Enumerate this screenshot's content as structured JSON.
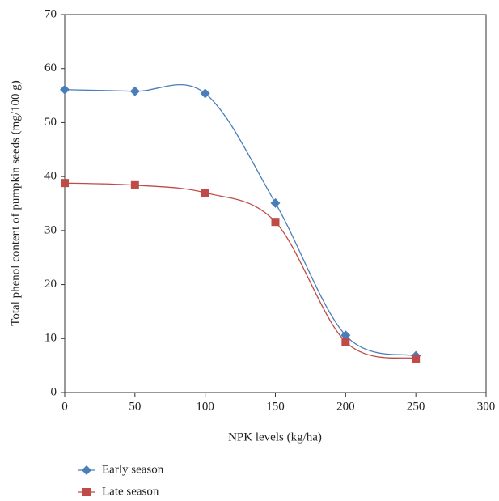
{
  "chart_data": {
    "type": "line",
    "x": [
      0,
      50,
      100,
      150,
      200,
      250
    ],
    "series": [
      {
        "name": "Early season",
        "color": "#4a7ebb",
        "marker": "diamond",
        "values": [
          56.1,
          55.8,
          55.4,
          35.1,
          10.6,
          6.8
        ]
      },
      {
        "name": "Late season",
        "color": "#be4b48",
        "marker": "square",
        "values": [
          38.8,
          38.4,
          37.0,
          31.6,
          9.4,
          6.3
        ]
      }
    ],
    "xlabel": "NPK levels (kg/ha)",
    "ylabel": "Total phenol content of pumpkin seeds (mg/100 g)",
    "xlim": [
      0,
      300
    ],
    "xticks": [
      0,
      50,
      100,
      150,
      200,
      250,
      300
    ],
    "ylim": [
      0,
      70
    ],
    "yticks": [
      0,
      10,
      20,
      30,
      40,
      50,
      60,
      70
    ],
    "smooth": true,
    "grid": false,
    "legend": "bottom-left"
  }
}
